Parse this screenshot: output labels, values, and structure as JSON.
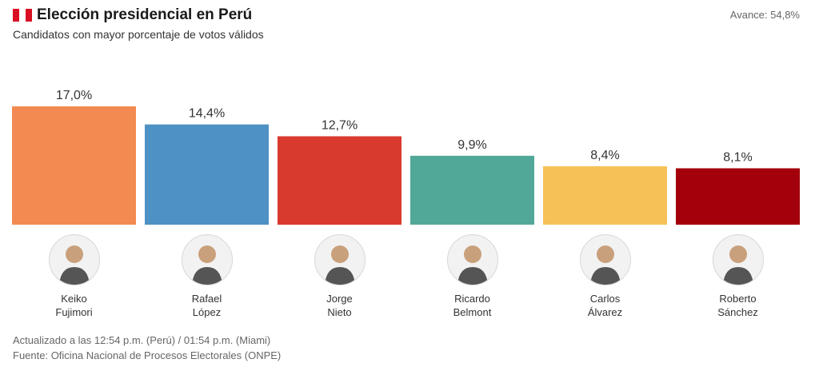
{
  "header": {
    "flag_icon": "peru-flag-icon",
    "title": "Elección presidencial en Perú",
    "subtitle": "Candidatos con mayor porcentaje de votos válidos",
    "progress": "Avance: 54,8%"
  },
  "chart_data": {
    "type": "bar",
    "categories": [
      "Keiko Fujimori",
      "Rafael López",
      "Jorge Nieto",
      "Ricardo Belmont",
      "Carlos Álvarez",
      "Roberto Sánchez"
    ],
    "values": [
      17.0,
      14.4,
      12.7,
      9.9,
      8.4,
      8.1
    ],
    "value_labels": [
      "17,0%",
      "14,4%",
      "12,7%",
      "9,9%",
      "8,4%",
      "8,1%"
    ],
    "colors": [
      "#f28a52",
      "#4e91c4",
      "#d93a2e",
      "#52a898",
      "#f6c258",
      "#a4000b"
    ],
    "title": "Elección presidencial en Perú",
    "ylabel": "",
    "ylim": [
      0,
      17.0
    ],
    "grid": false,
    "legend": "none"
  },
  "candidates": [
    {
      "first": "Keiko",
      "last": "Fujimori",
      "photo_icon": "candidate-photo-icon"
    },
    {
      "first": "Rafael",
      "last": "López",
      "photo_icon": "candidate-photo-icon"
    },
    {
      "first": "Jorge",
      "last": "Nieto",
      "photo_icon": "candidate-photo-icon"
    },
    {
      "first": "Ricardo",
      "last": "Belmont",
      "photo_icon": "candidate-photo-icon"
    },
    {
      "first": "Carlos",
      "last": "Álvarez",
      "photo_icon": "candidate-photo-icon"
    },
    {
      "first": "Roberto",
      "last": "Sánchez",
      "photo_icon": "candidate-photo-icon"
    }
  ],
  "footer": {
    "updated": "Actualizado a las 12:54 p.m. (Perú) / 01:54 p.m. (Miami)",
    "source": "Fuente: Oficina Nacional de Procesos Electorales (ONPE)"
  }
}
